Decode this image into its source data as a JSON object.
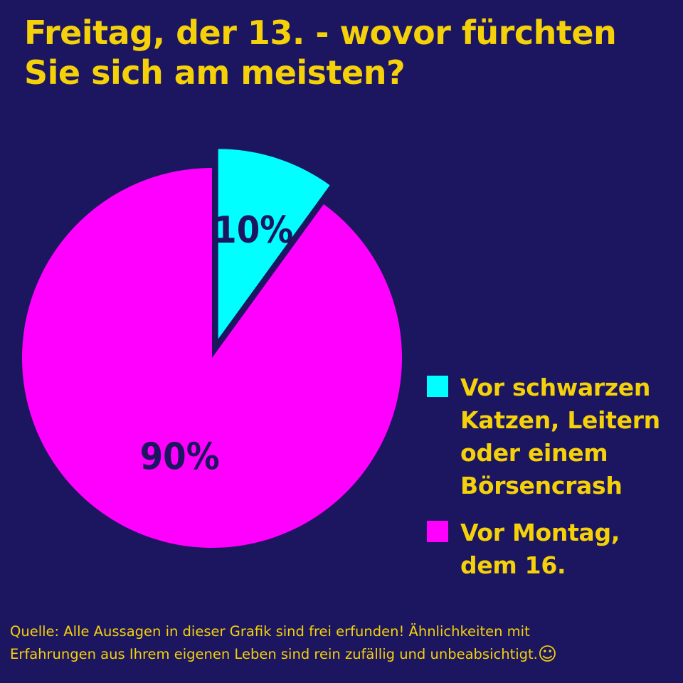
{
  "colors": {
    "background": "#1c1660",
    "text": "#f5d10a",
    "label": "#1c1660",
    "cyan": "#00ffff",
    "magenta": "#ff00ff"
  },
  "title": {
    "line1": "Freitag, der 13. - wovor fürchten",
    "line2": "Sie sich am meisten?"
  },
  "chart_data": {
    "type": "pie",
    "title": "Freitag, der 13. - wovor fürchten Sie sich am meisten?",
    "slices": [
      {
        "name": "Vor schwarzen Katzen, Leitern oder einem Börsencrash",
        "value": 10,
        "label": "10%",
        "color": "#00ffff",
        "exploded": true
      },
      {
        "name": "Vor Montag, dem 16.",
        "value": 90,
        "label": "90%",
        "color": "#ff00ff",
        "exploded": false
      }
    ],
    "legend_position": "right"
  },
  "legend": {
    "items": [
      {
        "lines": [
          "Vor schwarzen",
          "Katzen, Leitern",
          "oder einem",
          "Börsencrash"
        ],
        "color": "#00ffff"
      },
      {
        "lines": [
          "Vor Montag,",
          "dem 16."
        ],
        "color": "#ff00ff"
      }
    ]
  },
  "source": {
    "line1": "Quelle: Alle Aussagen in dieser Grafik sind frei erfunden! Ähnlichkeiten mit",
    "line2": "Erfahrungen aus Ihrem eigenen Leben sind rein zufällig und unbeabsichtigt.",
    "emoji": "☺"
  }
}
